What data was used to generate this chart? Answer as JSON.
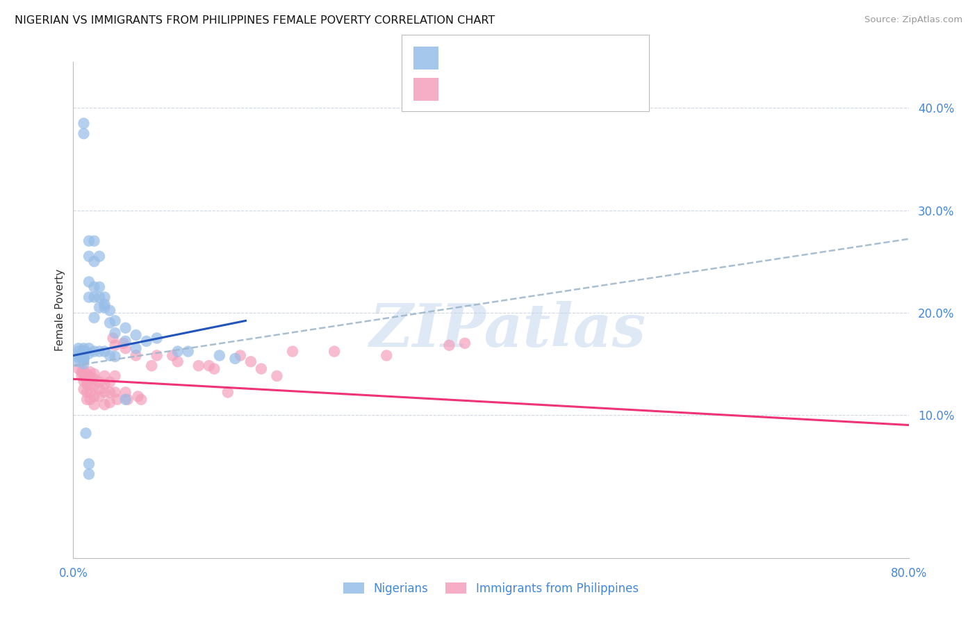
{
  "title": "NIGERIAN VS IMMIGRANTS FROM PHILIPPINES FEMALE POVERTY CORRELATION CHART",
  "source": "Source: ZipAtlas.com",
  "ylabel": "Female Poverty",
  "xlim": [
    0.0,
    0.8
  ],
  "ylim": [
    -0.04,
    0.445
  ],
  "yticks_right": [
    0.1,
    0.2,
    0.3,
    0.4
  ],
  "ytick_labels_right": [
    "10.0%",
    "20.0%",
    "30.0%",
    "40.0%"
  ],
  "xtick_pos": [
    0.0,
    0.8
  ],
  "xtick_labels": [
    "0.0%",
    "80.0%"
  ],
  "blue_color": "#96bde8",
  "pink_color": "#f4a0bb",
  "trend_blue_color": "#2255bb",
  "trend_pink_color": "#ee3377",
  "trend_gray_color": "#9fb8cc",
  "watermark": "ZIPatlas",
  "legend_label1": "Nigerians",
  "legend_label2": "Immigrants from Philippines",
  "blue_trend_x": [
    0.0,
    0.165
  ],
  "blue_trend_y": [
    0.158,
    0.192
  ],
  "pink_trend_x": [
    0.0,
    0.8
  ],
  "pink_trend_y": [
    0.135,
    0.09
  ],
  "gray_trend_x": [
    0.0,
    0.8
  ],
  "gray_trend_y": [
    0.148,
    0.272
  ],
  "nigerian_x": [
    0.005,
    0.005,
    0.005,
    0.005,
    0.005,
    0.01,
    0.01,
    0.01,
    0.01,
    0.01,
    0.01,
    0.01,
    0.01,
    0.015,
    0.015,
    0.015,
    0.015,
    0.015,
    0.015,
    0.02,
    0.02,
    0.02,
    0.02,
    0.02,
    0.02,
    0.025,
    0.025,
    0.025,
    0.025,
    0.025,
    0.03,
    0.03,
    0.03,
    0.03,
    0.035,
    0.035,
    0.035,
    0.04,
    0.04,
    0.04,
    0.05,
    0.05,
    0.05,
    0.06,
    0.06,
    0.07,
    0.08,
    0.1,
    0.11,
    0.14,
    0.155,
    0.015,
    0.015,
    0.01,
    0.01,
    0.012
  ],
  "nigerian_y": [
    0.165,
    0.162,
    0.158,
    0.156,
    0.152,
    0.165,
    0.163,
    0.16,
    0.157,
    0.156,
    0.155,
    0.153,
    0.15,
    0.27,
    0.255,
    0.23,
    0.215,
    0.165,
    0.16,
    0.27,
    0.25,
    0.225,
    0.215,
    0.195,
    0.162,
    0.255,
    0.225,
    0.215,
    0.205,
    0.162,
    0.215,
    0.208,
    0.205,
    0.162,
    0.202,
    0.19,
    0.158,
    0.192,
    0.18,
    0.157,
    0.185,
    0.172,
    0.115,
    0.178,
    0.165,
    0.172,
    0.175,
    0.162,
    0.162,
    0.158,
    0.155,
    0.052,
    0.042,
    0.385,
    0.375,
    0.082
  ],
  "philippines_x": [
    0.005,
    0.008,
    0.008,
    0.01,
    0.01,
    0.01,
    0.01,
    0.013,
    0.013,
    0.013,
    0.013,
    0.013,
    0.016,
    0.016,
    0.016,
    0.016,
    0.016,
    0.02,
    0.02,
    0.02,
    0.02,
    0.02,
    0.025,
    0.025,
    0.025,
    0.03,
    0.03,
    0.03,
    0.03,
    0.035,
    0.035,
    0.035,
    0.04,
    0.04,
    0.042,
    0.048,
    0.05,
    0.052,
    0.06,
    0.062,
    0.065,
    0.075,
    0.08,
    0.095,
    0.1,
    0.12,
    0.13,
    0.135,
    0.148,
    0.16,
    0.17,
    0.18,
    0.195,
    0.21,
    0.25,
    0.3,
    0.36,
    0.375,
    0.038,
    0.04,
    0.05
  ],
  "philippines_y": [
    0.145,
    0.142,
    0.138,
    0.143,
    0.138,
    0.133,
    0.125,
    0.14,
    0.135,
    0.13,
    0.122,
    0.115,
    0.142,
    0.137,
    0.13,
    0.122,
    0.115,
    0.14,
    0.135,
    0.128,
    0.118,
    0.11,
    0.132,
    0.125,
    0.118,
    0.138,
    0.13,
    0.122,
    0.11,
    0.132,
    0.122,
    0.112,
    0.138,
    0.122,
    0.115,
    0.17,
    0.122,
    0.115,
    0.158,
    0.118,
    0.115,
    0.148,
    0.158,
    0.158,
    0.152,
    0.148,
    0.148,
    0.145,
    0.122,
    0.158,
    0.152,
    0.145,
    0.138,
    0.162,
    0.162,
    0.158,
    0.168,
    0.17,
    0.175,
    0.168,
    0.165
  ]
}
